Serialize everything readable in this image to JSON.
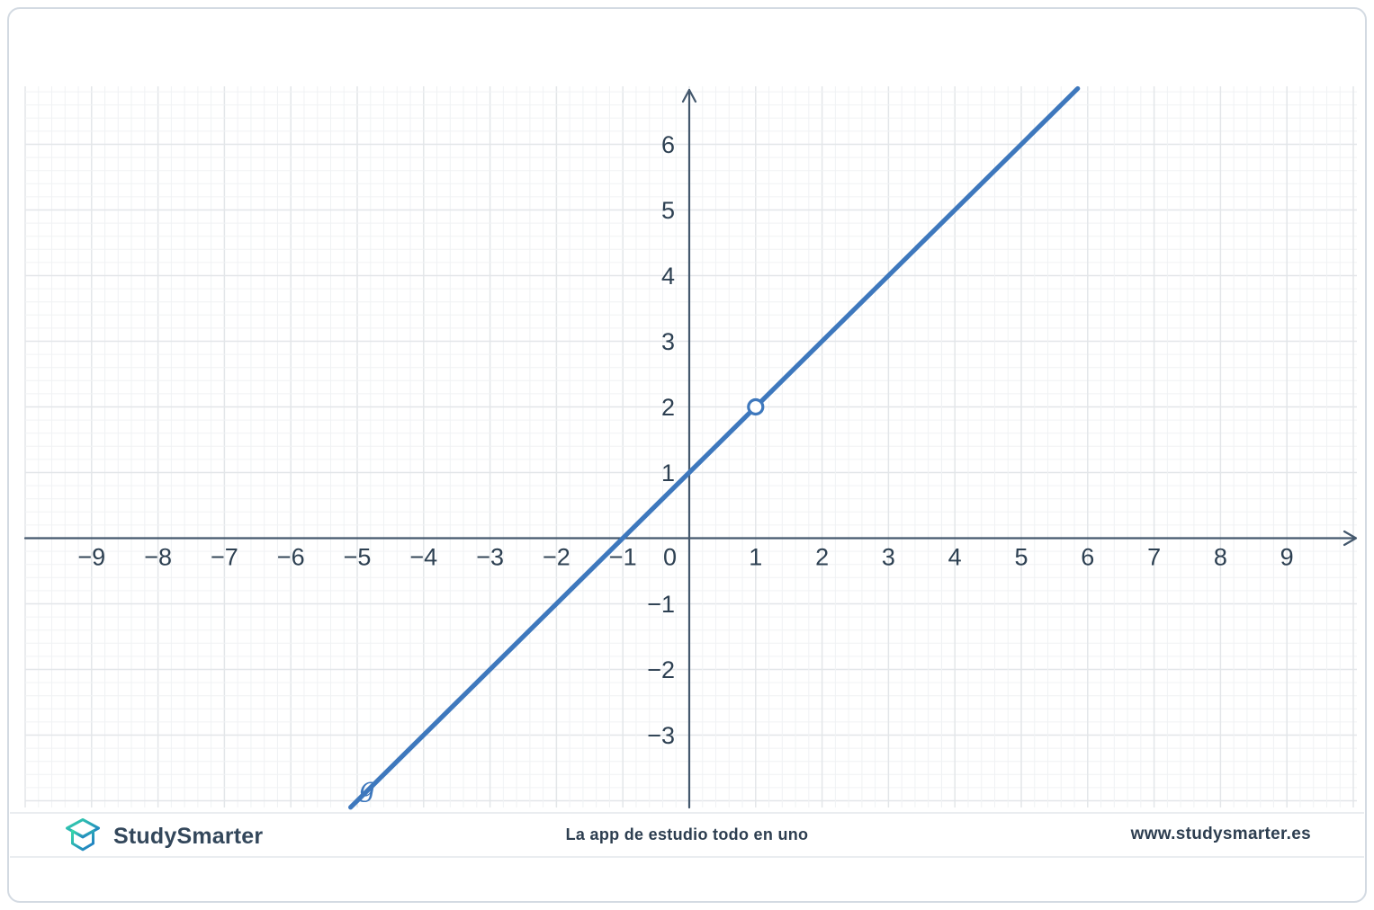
{
  "page": {
    "background_color": "#ffffff",
    "border_color": "#d3dae2"
  },
  "footer": {
    "brand": "StudySmarter",
    "tagline": "La app de estudio todo en uno",
    "website": "www.studysmarter.es",
    "logo_icon": "studysmarter-open-box-logo",
    "logo_gradient": [
      "#36d9a9",
      "#1e74c6"
    ],
    "text_color": "#2d3e50"
  },
  "chart_data": {
    "type": "line",
    "title": "",
    "xlabel": "",
    "ylabel": "",
    "xlim": [
      -10.0,
      10.05
    ],
    "ylim": [
      -4.11,
      6.87
    ],
    "x_tick_values": [
      -9,
      -8,
      -7,
      -6,
      -5,
      -4,
      -3,
      -2,
      -1,
      1,
      2,
      3,
      4,
      5,
      6,
      7,
      8,
      9
    ],
    "x_tick_labels": [
      "−9",
      "−8",
      "−7",
      "−6",
      "−5",
      "−4",
      "−3",
      "−2",
      "−1",
      "1",
      "2",
      "3",
      "4",
      "5",
      "6",
      "7",
      "8",
      "9"
    ],
    "y_tick_values": [
      -3,
      -2,
      -1,
      1,
      2,
      3,
      4,
      5,
      6
    ],
    "y_tick_labels": [
      "−3",
      "−2",
      "−1",
      "1",
      "2",
      "3",
      "4",
      "5",
      "6"
    ],
    "origin_label": "0",
    "grid": {
      "show": true,
      "major_step": 1,
      "minor_divisions": 5,
      "major_color": "#e3e6e9",
      "minor_color": "#f0f2f4"
    },
    "axis_color": "#44586d",
    "tick_label_color": "#2d4052",
    "legend_position": "none",
    "series": [
      {
        "name": "g",
        "expression": "g(x) = x + 1",
        "slope": 1,
        "intercept": 1,
        "x_range": [
          -5.1,
          5.85
        ],
        "points": [
          [
            -5.1,
            -4.1
          ],
          [
            -1,
            0
          ],
          [
            0,
            1
          ],
          [
            5.85,
            6.85
          ]
        ],
        "color": "#3e78bd",
        "line_width": 5.2,
        "open_point": {
          "x": 1,
          "y": 2
        },
        "label": {
          "text": "g",
          "x": -4.85,
          "y": -3.93
        }
      }
    ]
  }
}
